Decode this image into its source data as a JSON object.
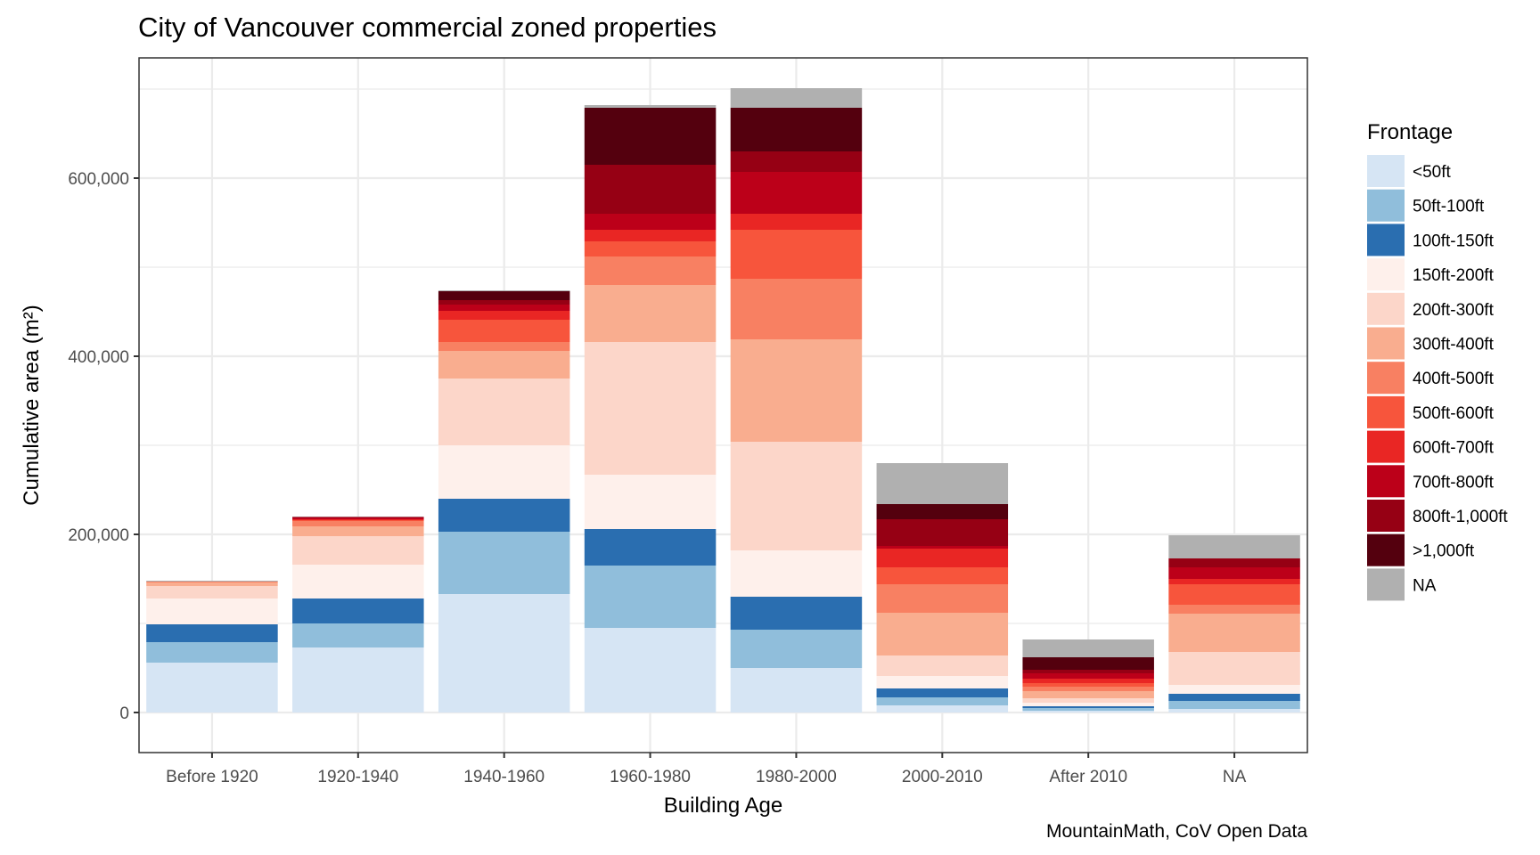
{
  "chart_data": {
    "type": "bar",
    "stacked": true,
    "title": "City of Vancouver commercial zoned properties",
    "xlabel": "Building Age",
    "ylabel": "Cumulative area (m²)",
    "caption": "MountainMath, CoV Open Data",
    "ylim": [
      -45000,
      735000
    ],
    "yticks": [
      0,
      200000,
      400000,
      600000
    ],
    "ytick_labels": [
      "0",
      "200,000",
      "400,000",
      "600,000"
    ],
    "y_minor_gridlines": [
      100000,
      300000,
      500000,
      700000
    ],
    "grid": true,
    "legend_title": "Frontage",
    "legend_position": "right",
    "categories": [
      "Before 1920",
      "1920-1940",
      "1940-1960",
      "1960-1980",
      "1980-2000",
      "2000-2010",
      "After 2010",
      "NA"
    ],
    "series": [
      {
        "name": "<50ft",
        "color": "#d6e5f4",
        "values": [
          56000,
          73000,
          133000,
          95000,
          50000,
          8000,
          2000,
          4000
        ]
      },
      {
        "name": "50ft-100ft",
        "color": "#90bedb",
        "values": [
          23000,
          27000,
          70000,
          70000,
          43000,
          9000,
          3000,
          9000
        ]
      },
      {
        "name": "100ft-150ft",
        "color": "#2a6eb0",
        "values": [
          20000,
          28000,
          37000,
          41000,
          37000,
          10000,
          2000,
          8000
        ]
      },
      {
        "name": "150ft-200ft",
        "color": "#fef0eb",
        "values": [
          29000,
          38000,
          60000,
          61000,
          52000,
          14000,
          4000,
          10000
        ]
      },
      {
        "name": "200ft-300ft",
        "color": "#fcd6c9",
        "values": [
          14000,
          32000,
          75000,
          149000,
          122000,
          23000,
          5000,
          37000
        ]
      },
      {
        "name": "300ft-400ft",
        "color": "#f9ad8f",
        "values": [
          4000,
          11000,
          31000,
          64000,
          115000,
          48000,
          8000,
          43000
        ]
      },
      {
        "name": "400ft-500ft",
        "color": "#f88062",
        "values": [
          1000,
          6000,
          10000,
          32000,
          68000,
          32000,
          5000,
          10000
        ]
      },
      {
        "name": "500ft-600ft",
        "color": "#f7553c",
        "values": [
          0,
          1000,
          25000,
          17000,
          55000,
          19000,
          4000,
          23000
        ]
      },
      {
        "name": "600ft-700ft",
        "color": "#e92624",
        "values": [
          0,
          1000,
          10000,
          13000,
          18000,
          21000,
          5000,
          6000
        ]
      },
      {
        "name": "700ft-800ft",
        "color": "#bc0019",
        "values": [
          0,
          2000,
          7000,
          18000,
          47000,
          3000,
          6000,
          13000
        ]
      },
      {
        "name": "800ft-1,000ft",
        "color": "#960014",
        "values": [
          0,
          500,
          5000,
          55000,
          23000,
          30000,
          4000,
          10000
        ]
      },
      {
        "name": ">1,000ft",
        "color": "#54000e",
        "values": [
          0,
          0,
          10000,
          64000,
          49000,
          17000,
          14000,
          0
        ]
      },
      {
        "name": "NA",
        "color": "#b0b0b0",
        "values": [
          1000,
          500,
          1000,
          3000,
          22000,
          46000,
          20000,
          26000
        ]
      }
    ]
  }
}
